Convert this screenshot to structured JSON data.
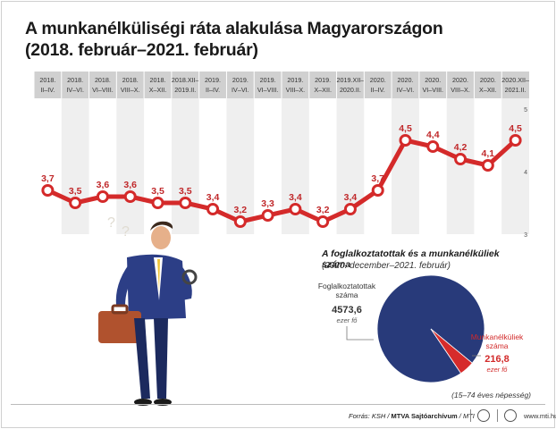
{
  "title": "A munkanélküliségi ráta alakulása Magyarországon",
  "subtitle": "(2018. február–2021. február)",
  "chart_data": [
    {
      "type": "line",
      "categories": [
        [
          "2018.",
          "II–IV."
        ],
        [
          "2018.",
          "IV–VI."
        ],
        [
          "2018.",
          "VI–VIII."
        ],
        [
          "2018.",
          "VIII–X."
        ],
        [
          "2018.",
          "X–XII."
        ],
        [
          "2018.XII–",
          "2019.II."
        ],
        [
          "2019.",
          "II–IV."
        ],
        [
          "2019.",
          "IV–VI."
        ],
        [
          "2019.",
          "VI–VIII."
        ],
        [
          "2019.",
          "VIII–X."
        ],
        [
          "2019.",
          "X–XII."
        ],
        [
          "2019.XII–",
          "2020.II."
        ],
        [
          "2020.",
          "II–IV."
        ],
        [
          "2020.",
          "IV–VI."
        ],
        [
          "2020.",
          "VI–VIII."
        ],
        [
          "2020.",
          "VIII–X."
        ],
        [
          "2020.",
          "X–XII."
        ],
        [
          "2020.XII–",
          "2021.II."
        ]
      ],
      "values": [
        3.7,
        3.5,
        3.6,
        3.6,
        3.5,
        3.5,
        3.4,
        3.2,
        3.3,
        3.4,
        3.2,
        3.4,
        3.7,
        4.5,
        4.4,
        4.2,
        4.1,
        4.5
      ],
      "value_labels": [
        "3,7",
        "3,5",
        "3,6",
        "3,6",
        "3,5",
        "3,5",
        "3,4",
        "3,2",
        "3,3",
        "3,4",
        "3,2",
        "3,4",
        "3,7",
        "4,5",
        "4,4",
        "4,2",
        "4,1",
        "4,5"
      ],
      "ylim": [
        3,
        5
      ],
      "y_ticks": [
        3,
        4,
        5
      ],
      "grid": true,
      "colors": {
        "line": "#d42a2a",
        "point_fill": "#ffffff",
        "label": "#c0282a",
        "header_bg": "#d0d0d0",
        "column_shade": "#efefef"
      }
    },
    {
      "type": "pie",
      "title": "A foglalkoztatottak és a munkanélküliek száma",
      "subtitle": "(2020. december–2021. február)",
      "unit": "ezer fő",
      "slices": [
        {
          "label": "Foglalkoztatottak száma",
          "label_lines": [
            "Foglalkoztatottak",
            "száma"
          ],
          "value": 4573.6,
          "value_label": "4573,6",
          "color": "#283a7a"
        },
        {
          "label": "Munkanélküliek száma",
          "label_lines": [
            "Munkanélküliek",
            "száma"
          ],
          "value": 216.8,
          "value_label": "216,8",
          "color": "#d62b2b"
        }
      ]
    }
  ],
  "note": "(15–74 éves népesség)",
  "footer": {
    "source_prefix": "Forrás: KSH / ",
    "source_bold": "MTVA Sajtóarchívum",
    "source_suffix": " / MTI",
    "website": "www.mti.hu",
    "mtva_logo": "MTVA",
    "mti_logo": "MTI"
  }
}
